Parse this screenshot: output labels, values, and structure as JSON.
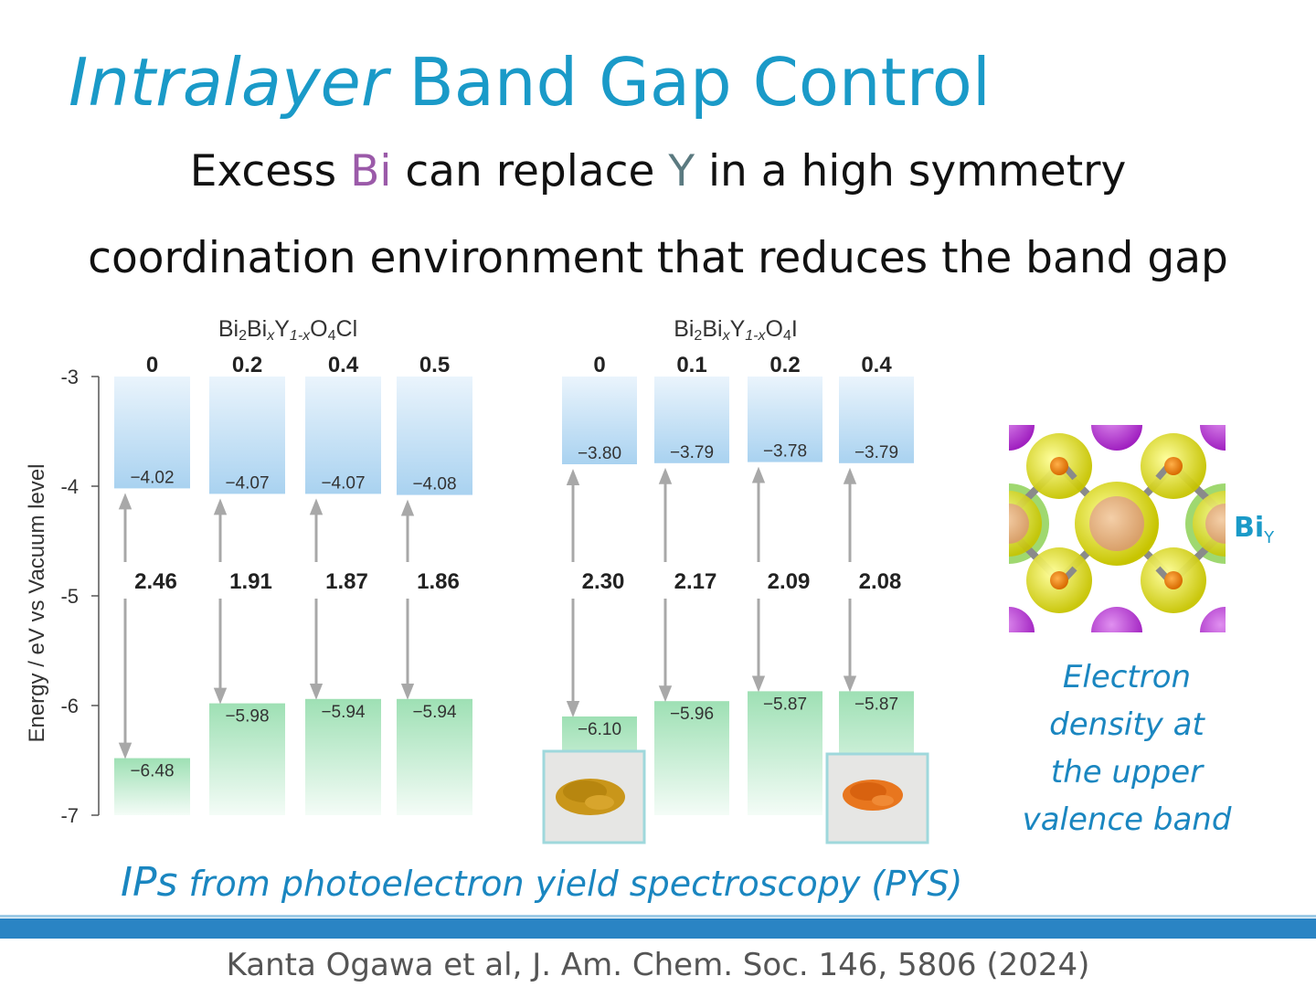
{
  "title": {
    "italic": "Intralayer",
    "rest": "Band Gap Control"
  },
  "subtitle": {
    "line1_pre": "Excess ",
    "line1_bi": "Bi",
    "line1_mid": " can replace ",
    "line1_y": "Y",
    "line1_post": " in a high symmetry",
    "line2": "coordination environment that reduces the band gap"
  },
  "chart_data": {
    "type": "bar",
    "ylabel": "Energy / eV vs Vacuum level",
    "ylim": [
      -7,
      -3
    ],
    "yticks": [
      -3,
      -4,
      -5,
      -6,
      -7
    ],
    "groups": [
      {
        "formula": {
          "a": "Bi",
          "b": "2",
          "c": "Bi",
          "d": "x",
          "e": "Y",
          "f": "1-x",
          "g": "O",
          "h": "4",
          "i": "Cl"
        },
        "categories": [
          "0",
          "0.2",
          "0.4",
          "0.5"
        ],
        "cbm": [
          -4.02,
          -4.07,
          -4.07,
          -4.08
        ],
        "vbm": [
          -6.48,
          -5.98,
          -5.94,
          -5.94
        ],
        "cbm_labels": [
          "−4.02",
          "−4.07",
          "−4.07",
          "−4.08"
        ],
        "vbm_labels": [
          "−6.48",
          "−5.98",
          "−5.94",
          "−5.94"
        ],
        "gaps": [
          "2.46",
          "1.91",
          "1.87",
          "1.86"
        ]
      },
      {
        "formula": {
          "a": "Bi",
          "b": "2",
          "c": "Bi",
          "d": "x",
          "e": "Y",
          "f": "1-x",
          "g": "O",
          "h": "4",
          "i": "I"
        },
        "categories": [
          "0",
          "0.1",
          "0.2",
          "0.4"
        ],
        "cbm": [
          -3.8,
          -3.79,
          -3.78,
          -3.79
        ],
        "vbm": [
          -6.1,
          -5.96,
          -5.87,
          -5.87
        ],
        "cbm_labels": [
          "−3.80",
          "−3.79",
          "−3.78",
          "−3.79"
        ],
        "vbm_labels": [
          "−6.10",
          "−5.96",
          "−5.87",
          "−5.87"
        ],
        "gaps": [
          "2.30",
          "2.17",
          "2.09",
          "2.08"
        ]
      }
    ],
    "colors": {
      "cb": "#a9d2f0",
      "vb": "#9ee0b4",
      "arrow": "#a8a8a8",
      "axis": "#555555"
    }
  },
  "crystal_label": {
    "main": "Bi",
    "sub": "Y"
  },
  "density_caption": [
    "Electron",
    "density at",
    "the upper",
    "valence band"
  ],
  "pys_caption": {
    "big": "IPs",
    "rest": " from photoelectron yield spectroscopy (PYS)"
  },
  "citation": "Kanta Ogawa et al, J. Am. Chem. Soc. 146, 5806 (2024)"
}
